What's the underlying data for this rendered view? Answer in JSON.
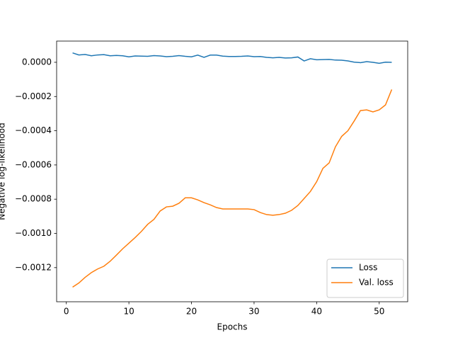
{
  "chart_data": {
    "type": "line",
    "xlabel": "Epochs",
    "ylabel": "Negative log-likelihood",
    "x": [
      1,
      2,
      3,
      4,
      5,
      6,
      7,
      8,
      9,
      10,
      11,
      12,
      13,
      14,
      15,
      16,
      17,
      18,
      19,
      20,
      21,
      22,
      23,
      24,
      25,
      26,
      27,
      28,
      29,
      30,
      31,
      32,
      33,
      34,
      35,
      36,
      37,
      38,
      39,
      40,
      41,
      42,
      43,
      44,
      45,
      46,
      47,
      48,
      49,
      50,
      51,
      52
    ],
    "series": [
      {
        "name": "Loss",
        "color": "#1f77b4",
        "values": [
          5.5e-05,
          4.3e-05,
          4.6e-05,
          3.8e-05,
          4.3e-05,
          4.5e-05,
          3.8e-05,
          4e-05,
          3.8e-05,
          3.2e-05,
          3.7e-05,
          3.6e-05,
          3.5e-05,
          3.9e-05,
          3.7e-05,
          3.3e-05,
          3.5e-05,
          3.9e-05,
          3.5e-05,
          3.2e-05,
          4.2e-05,
          2.9e-05,
          4.2e-05,
          4.2e-05,
          3.6e-05,
          3.4e-05,
          3.4e-05,
          3.5e-05,
          3.7e-05,
          3.3e-05,
          3.4e-05,
          2.9e-05,
          2.6e-05,
          2.9e-05,
          2.5e-05,
          2.6e-05,
          3.1e-05,
          8e-06,
          2.1e-05,
          1.5e-05,
          1.6e-05,
          1.7e-05,
          1.3e-05,
          1.2e-05,
          8e-06,
          1e-06,
          -2e-06,
          4e-06,
          0,
          -6e-06,
          1e-06,
          0
        ]
      },
      {
        "name": "Val. loss",
        "color": "#ff7f0e",
        "values": [
          -0.001314,
          -0.00129,
          -0.001257,
          -0.001229,
          -0.001208,
          -0.001192,
          -0.001163,
          -0.001127,
          -0.00109,
          -0.001057,
          -0.001024,
          -0.000988,
          -0.000947,
          -0.000918,
          -0.000869,
          -0.000845,
          -0.000841,
          -0.000824,
          -0.000792,
          -0.000792,
          -0.000804,
          -0.00082,
          -0.000833,
          -0.000849,
          -0.000857,
          -0.000857,
          -0.000857,
          -0.000857,
          -0.000857,
          -0.000861,
          -0.000878,
          -0.00089,
          -0.000894,
          -0.00089,
          -0.000882,
          -0.000865,
          -0.000837,
          -0.000796,
          -0.000755,
          -0.000698,
          -0.00062,
          -0.000588,
          -0.000494,
          -0.000433,
          -0.0004,
          -0.000343,
          -0.000282,
          -0.000278,
          -0.00029,
          -0.000278,
          -0.000249,
          -0.000159
        ]
      }
    ],
    "xlim": [
      -1.55,
      54.55
    ],
    "xticks": [
      0,
      10,
      20,
      30,
      40,
      50
    ],
    "ylim": [
      -0.0013995,
      0.000124
    ],
    "yticks": [
      {
        "value": 0,
        "label": "0.0000"
      },
      {
        "value": -0.0002,
        "label": "−0.0002"
      },
      {
        "value": -0.0004,
        "label": "−0.0004"
      },
      {
        "value": -0.0006,
        "label": "−0.0006"
      },
      {
        "value": -0.0008,
        "label": "−0.0008"
      },
      {
        "value": -0.001,
        "label": "−0.0010"
      },
      {
        "value": -0.0012,
        "label": "−0.0012"
      }
    ],
    "legend": "lower right",
    "grid": false
  }
}
